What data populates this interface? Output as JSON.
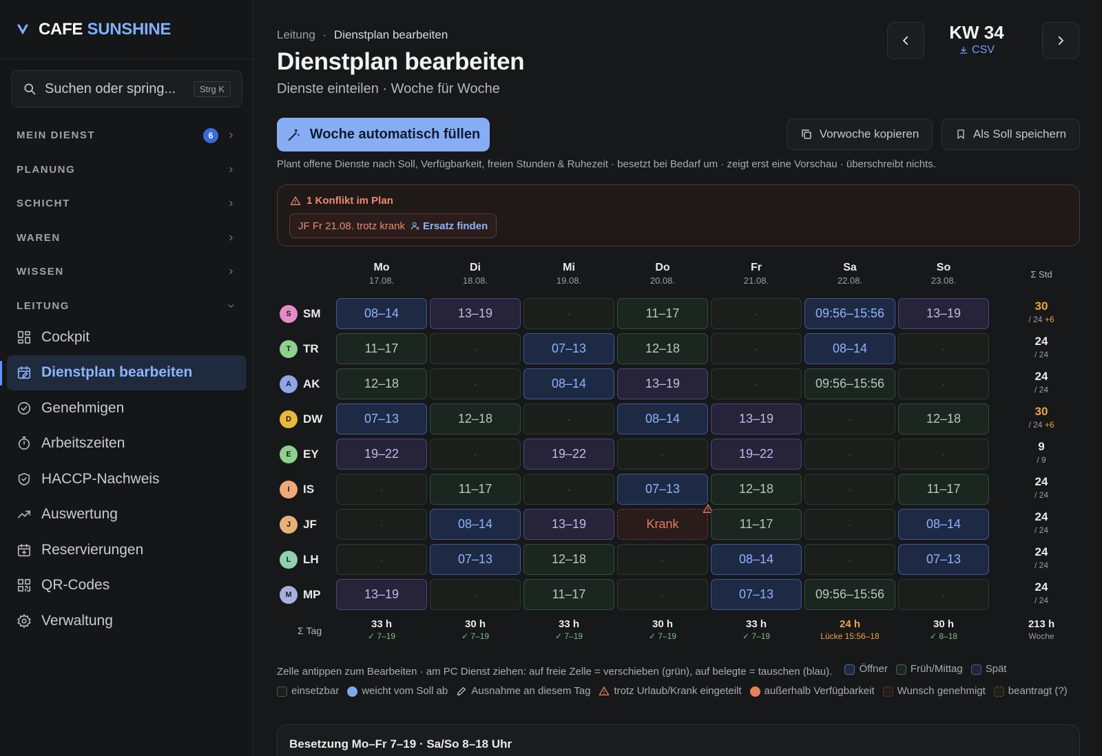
{
  "brand": {
    "part1": "CAFE",
    "part2": "SUNSHINE"
  },
  "search": {
    "placeholder": "Suchen oder spring...",
    "shortcut": "Strg K"
  },
  "nav_sections": [
    {
      "label": "MEIN DIENST",
      "badge": "6"
    },
    {
      "label": "PLANUNG"
    },
    {
      "label": "SCHICHT"
    },
    {
      "label": "WAREN"
    },
    {
      "label": "WISSEN"
    },
    {
      "label": "LEITUNG"
    }
  ],
  "nav_items": [
    {
      "label": "Cockpit",
      "icon": "grid-icon"
    },
    {
      "label": "Dienstplan bearbeiten",
      "icon": "calendar-edit-icon",
      "active": true
    },
    {
      "label": "Genehmigen",
      "icon": "check-circle-icon"
    },
    {
      "label": "Arbeitszeiten",
      "icon": "stopwatch-icon"
    },
    {
      "label": "HACCP-Nachweis",
      "icon": "shield-check-icon"
    },
    {
      "label": "Auswertung",
      "icon": "trend-icon"
    },
    {
      "label": "Reservierungen",
      "icon": "calendar-plus-icon"
    },
    {
      "label": "QR-Codes",
      "icon": "qr-code-icon"
    },
    {
      "label": "Verwaltung",
      "icon": "gear-icon"
    }
  ],
  "breadcrumb": {
    "parent": "Leitung",
    "sep": "·",
    "current": "Dienstplan bearbeiten"
  },
  "page": {
    "title": "Dienstplan bearbeiten",
    "subtitle": "Dienste einteilen · Woche für Woche"
  },
  "week": {
    "label": "KW 34",
    "csv": "CSV"
  },
  "actions": {
    "autofill": "Woche automatisch füllen",
    "copy_prev": "Vorwoche kopieren",
    "save_target": "Als Soll speichern",
    "hint": "Plant offene Dienste nach Soll, Verfügbarkeit, freien Stunden & Ruhezeit · besetzt bei Bedarf um · zeigt erst eine Vorschau · überschreibt nichts."
  },
  "conflict": {
    "title": "1 Konflikt im Plan",
    "item": "JF Fr 21.08. trotz krank",
    "action": "Ersatz finden"
  },
  "days": [
    {
      "day": "Mo",
      "date": "17.08."
    },
    {
      "day": "Di",
      "date": "18.08."
    },
    {
      "day": "Mi",
      "date": "19.08."
    },
    {
      "day": "Do",
      "date": "20.08."
    },
    {
      "day": "Fr",
      "date": "21.08."
    },
    {
      "day": "Sa",
      "date": "22.08."
    },
    {
      "day": "So",
      "date": "23.08."
    }
  ],
  "sum_header": "Σ Std",
  "employees": [
    {
      "initial": "S",
      "code": "SM",
      "color": "#e58cc8",
      "hours": "30",
      "target": "/ 24",
      "extra": "+6",
      "over": true,
      "shifts": [
        [
          "08–14",
          "blue"
        ],
        [
          "13–19",
          "purple"
        ],
        [
          "·",
          "empty"
        ],
        [
          "11–17",
          "green"
        ],
        [
          "·",
          "empty"
        ],
        [
          "09:56–15:56",
          "blue"
        ],
        [
          "13–19",
          "purple"
        ]
      ]
    },
    {
      "initial": "T",
      "code": "TR",
      "color": "#8fd08f",
      "hours": "24",
      "target": "/ 24",
      "extra": "",
      "over": false,
      "shifts": [
        [
          "11–17",
          "green"
        ],
        [
          "·",
          "empty"
        ],
        [
          "07–13",
          "blue"
        ],
        [
          "12–18",
          "green"
        ],
        [
          "·",
          "empty"
        ],
        [
          "08–14",
          "blue"
        ],
        [
          "·",
          "empty"
        ]
      ]
    },
    {
      "initial": "A",
      "code": "AK",
      "color": "#8fa6e8",
      "hours": "24",
      "target": "/ 24",
      "extra": "",
      "over": false,
      "shifts": [
        [
          "12–18",
          "green"
        ],
        [
          "·",
          "empty"
        ],
        [
          "08–14",
          "blue"
        ],
        [
          "13–19",
          "purple"
        ],
        [
          "·",
          "empty"
        ],
        [
          "09:56–15:56",
          "green"
        ],
        [
          "·",
          "empty"
        ]
      ]
    },
    {
      "initial": "D",
      "code": "DW",
      "color": "#e8b83a",
      "hours": "30",
      "target": "/ 24",
      "extra": "+6",
      "over": true,
      "shifts": [
        [
          "07–13",
          "blue"
        ],
        [
          "12–18",
          "green"
        ],
        [
          "·",
          "empty"
        ],
        [
          "08–14",
          "blue"
        ],
        [
          "13–19",
          "purple"
        ],
        [
          "·",
          "empty"
        ],
        [
          "12–18",
          "green"
        ]
      ]
    },
    {
      "initial": "E",
      "code": "EY",
      "color": "#8fd08f",
      "hours": "9",
      "target": "/ 9",
      "extra": "",
      "over": false,
      "shifts": [
        [
          "19–22",
          "purple"
        ],
        [
          "·",
          "empty"
        ],
        [
          "19–22",
          "purple"
        ],
        [
          "·",
          "empty"
        ],
        [
          "19–22",
          "purple"
        ],
        [
          "·",
          "empty"
        ],
        [
          "·",
          "empty"
        ]
      ]
    },
    {
      "initial": "I",
      "code": "IS",
      "color": "#f0a878",
      "hours": "24",
      "target": "/ 24",
      "extra": "",
      "over": false,
      "shifts": [
        [
          "·",
          "empty"
        ],
        [
          "11–17",
          "green"
        ],
        [
          "·",
          "empty"
        ],
        [
          "07–13",
          "blue"
        ],
        [
          "12–18",
          "green"
        ],
        [
          "·",
          "empty"
        ],
        [
          "11–17",
          "green"
        ]
      ]
    },
    {
      "initial": "J",
      "code": "JF",
      "color": "#e8b07a",
      "hours": "24",
      "target": "/ 24",
      "extra": "",
      "over": false,
      "shifts": [
        [
          "·",
          "empty"
        ],
        [
          "08–14",
          "blue"
        ],
        [
          "13–19",
          "purple"
        ],
        [
          "Krank",
          "krank"
        ],
        [
          "11–17",
          "green"
        ],
        [
          "·",
          "empty"
        ],
        [
          "08–14",
          "blue"
        ]
      ]
    },
    {
      "initial": "L",
      "code": "LH",
      "color": "#8fd0b0",
      "hours": "24",
      "target": "/ 24",
      "extra": "",
      "over": false,
      "shifts": [
        [
          "·",
          "empty"
        ],
        [
          "07–13",
          "blue"
        ],
        [
          "12–18",
          "green"
        ],
        [
          "·",
          "empty"
        ],
        [
          "08–14",
          "blue"
        ],
        [
          "·",
          "empty"
        ],
        [
          "07–13",
          "blue"
        ]
      ]
    },
    {
      "initial": "M",
      "code": "MP",
      "color": "#a8b0e0",
      "hours": "24",
      "target": "/ 24",
      "extra": "",
      "over": false,
      "shifts": [
        [
          "13–19",
          "purple"
        ],
        [
          "·",
          "empty"
        ],
        [
          "11–17",
          "green"
        ],
        [
          "·",
          "empty"
        ],
        [
          "07–13",
          "blue"
        ],
        [
          "09:56–15:56",
          "green"
        ],
        [
          "·",
          "empty"
        ]
      ]
    }
  ],
  "day_sums_label": "Σ Tag",
  "day_sums": [
    {
      "hours": "33 h",
      "note": "✓ 7–19",
      "warn": false
    },
    {
      "hours": "30 h",
      "note": "✓ 7–19",
      "warn": false
    },
    {
      "hours": "33 h",
      "note": "✓ 7–19",
      "warn": false
    },
    {
      "hours": "30 h",
      "note": "✓ 7–19",
      "warn": false
    },
    {
      "hours": "33 h",
      "note": "✓ 7–19",
      "warn": false
    },
    {
      "hours": "24 h",
      "note": "Lücke 15:56–18",
      "warn": true
    },
    {
      "hours": "30 h",
      "note": "✓ 8–18",
      "warn": false
    }
  ],
  "week_sum": {
    "hours": "213 h",
    "label": "Woche"
  },
  "legend": {
    "intro": "Zelle antippen zum Bearbeiten · am PC Dienst ziehen: auf freie Zelle = verschieben (grün), auf belegte = tauschen (blau).",
    "items": [
      {
        "label": "Öffner",
        "bg": "#1e2a44",
        "border": "#4a6aa8"
      },
      {
        "label": "Früh/Mittag",
        "bg": "#1b2620",
        "border": "#4a6655"
      },
      {
        "label": "Spät",
        "bg": "#272338",
        "border": "#5a5490"
      },
      {
        "label": "einsetzbar",
        "bg": "#1a1f1b",
        "border": "#4a5a4e"
      },
      {
        "label": "weicht vom Soll ab",
        "dot": "#7fa8f0"
      },
      {
        "label": "Ausnahme an diesem Tag",
        "icon": "pencil-icon"
      },
      {
        "label": "trotz Urlaub/Krank eingeteilt",
        "icon": "warning-icon"
      },
      {
        "label": "außerhalb Verfügbarkeit",
        "dot": "#e8805a"
      },
      {
        "label": "Wunsch genehmigt",
        "bg": "#2a1c1a",
        "border": "#7a3d34",
        "dashed": true
      },
      {
        "label": "beantragt (?)",
        "bg": "#221f16",
        "border": "#6a5e34",
        "dashed": true
      }
    ]
  },
  "coverage": {
    "title": "Besetzung Mo–Fr 7–19 · Sa/So 8–18 Uhr"
  }
}
